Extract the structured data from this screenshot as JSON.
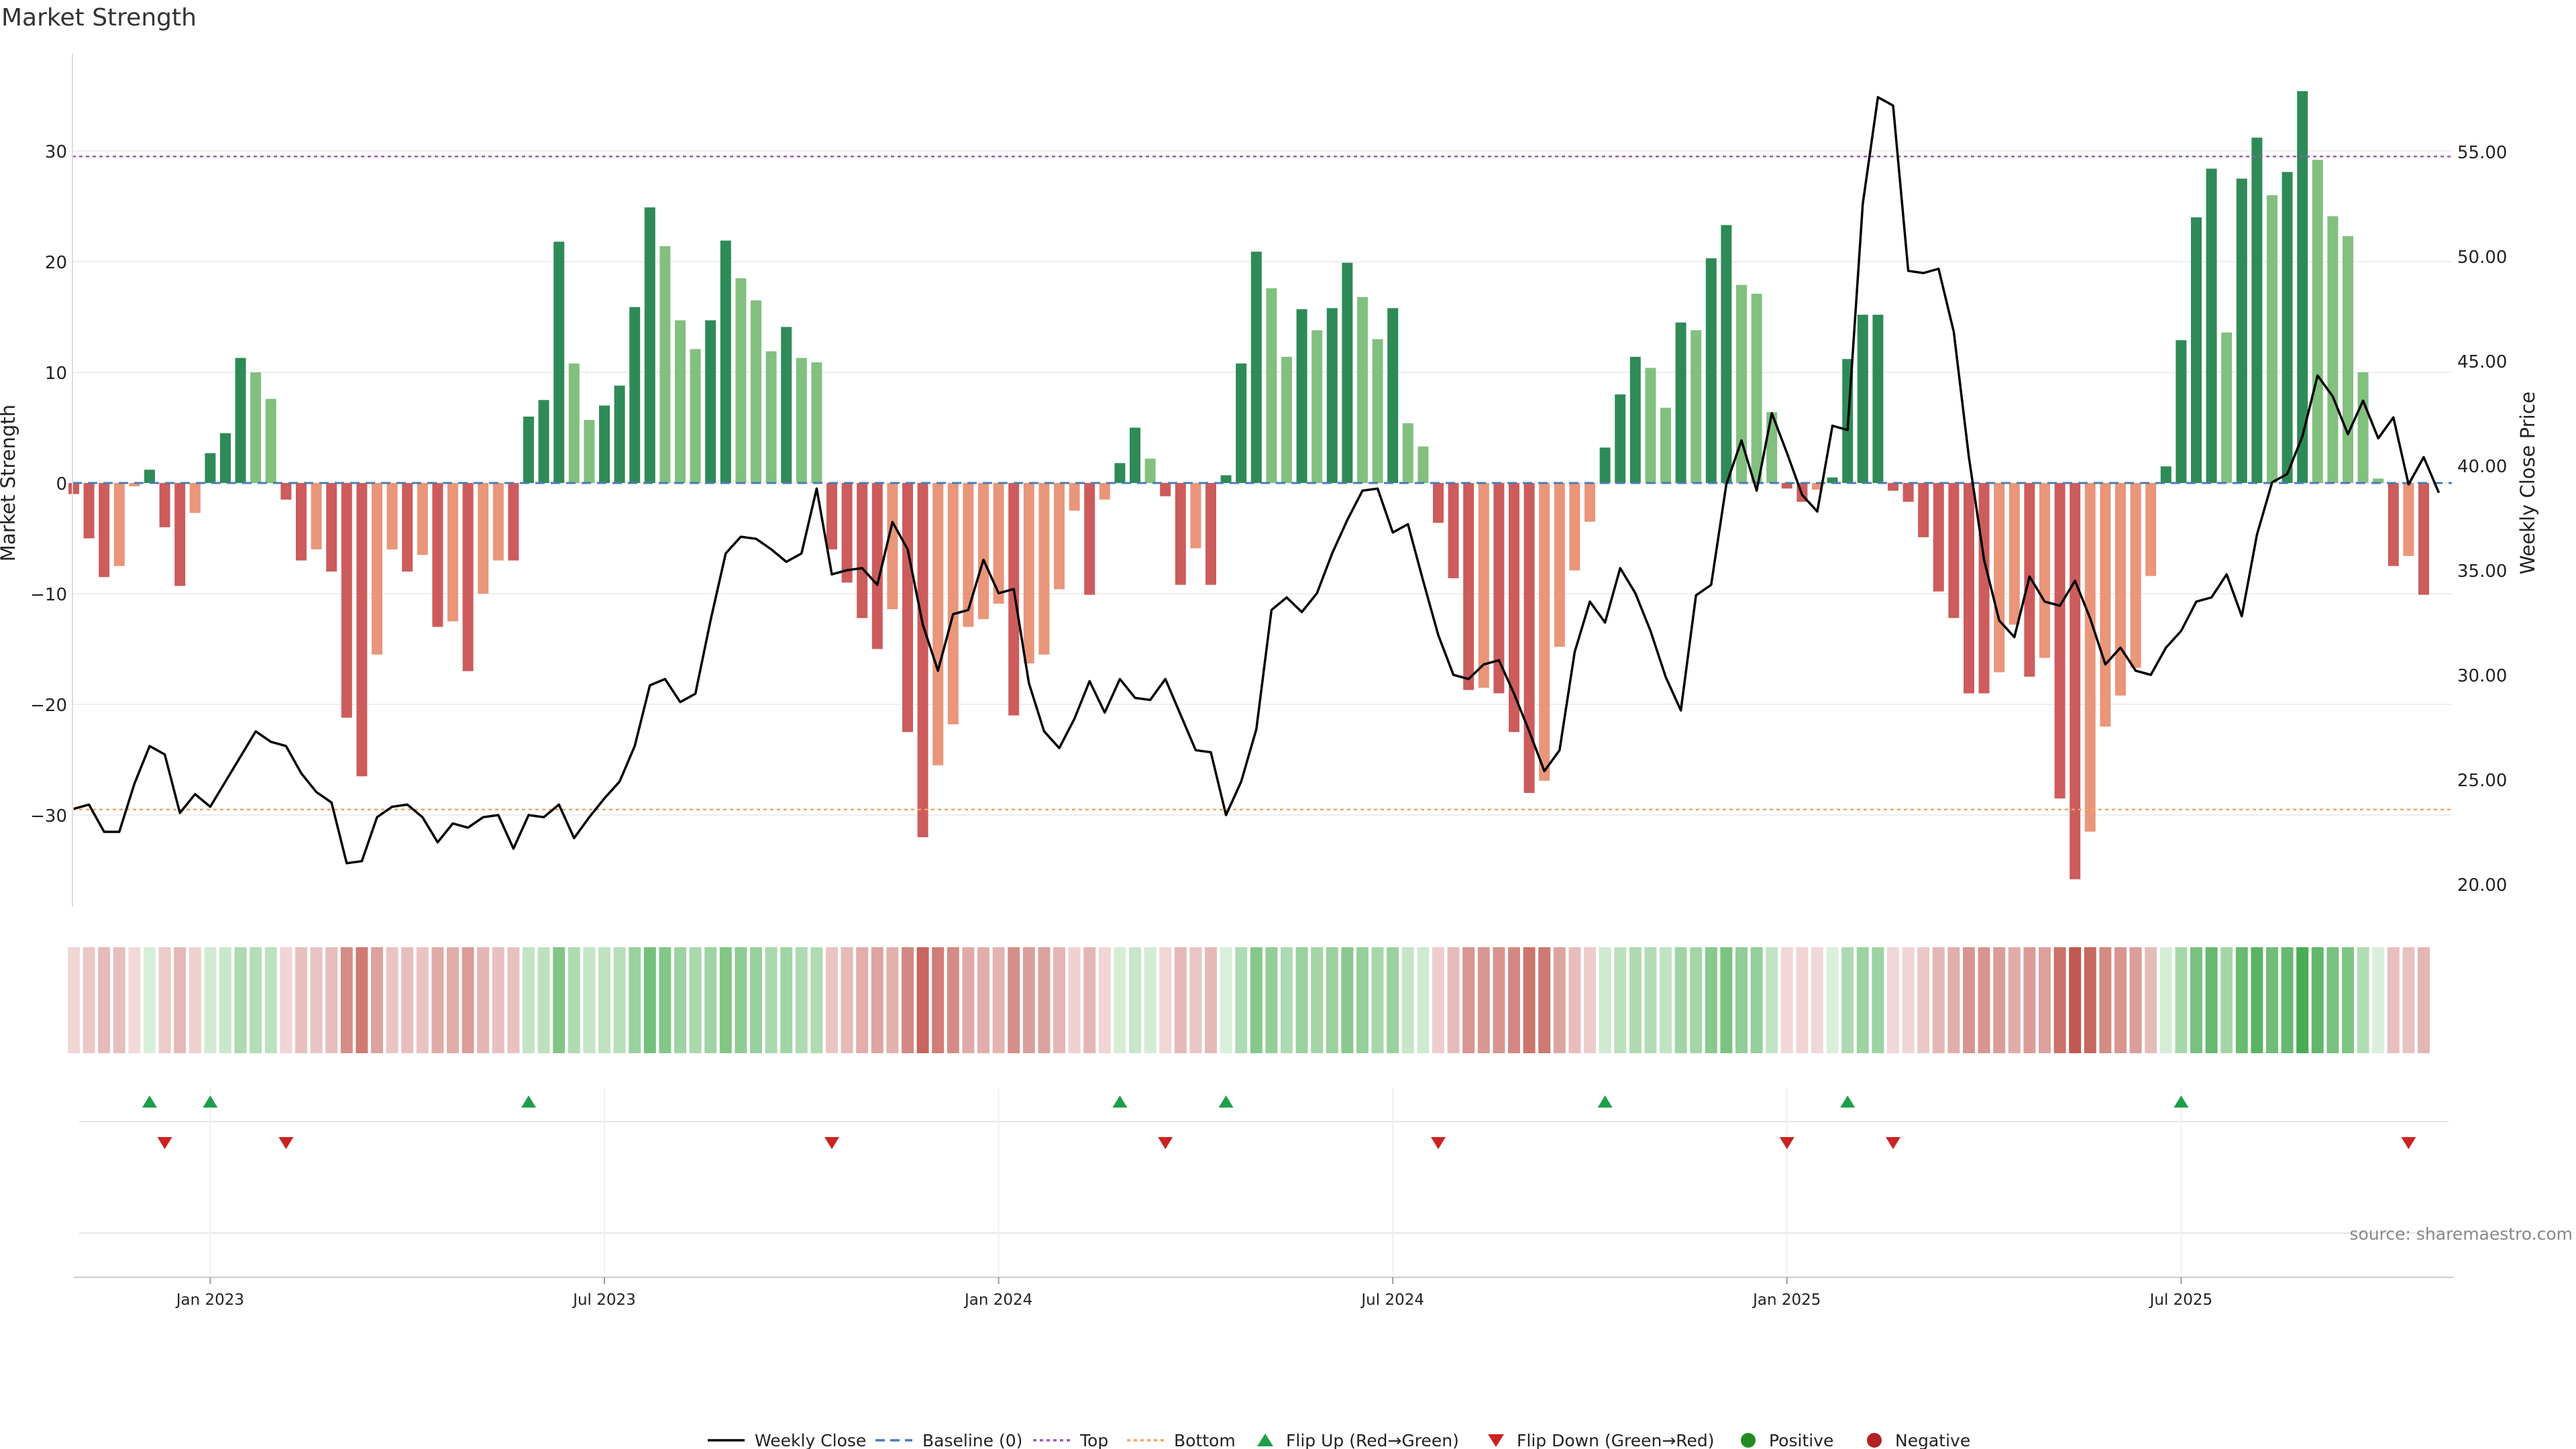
{
  "chart_data": {
    "type": "bar",
    "title": "Market Strength",
    "ylabel_left": "Market Strength",
    "ylabel_right": "Weekly Close Price",
    "source": "source: sharemaestro.com",
    "ylim_left": [
      -38,
      39
    ],
    "ylim_right": [
      19.0,
      59.8
    ],
    "yticks_left": [
      "−30",
      "−20",
      "−10",
      "0",
      "10",
      "20",
      "30"
    ],
    "yticks_right": [
      "20.00",
      "25.00",
      "30.00",
      "35.00",
      "40.00",
      "45.00",
      "50.00",
      "55.00"
    ],
    "x_ticks": [
      {
        "label": "Jan 2023",
        "index": 9
      },
      {
        "label": "Jul 2023",
        "index": 35
      },
      {
        "label": "Jan 2024",
        "index": 61
      },
      {
        "label": "Jul 2024",
        "index": 87
      },
      {
        "label": "Jan 2025",
        "index": 113
      },
      {
        "label": "Jul 2025",
        "index": 139
      }
    ],
    "top_line": 29.5,
    "bottom_line": -29.5,
    "strength": [
      -1,
      -5,
      -8.5,
      -7.5,
      -0.3,
      1.2,
      -4,
      -9.3,
      -2.7,
      2.7,
      4.5,
      11.3,
      10,
      7.6,
      -1.5,
      -7,
      -6,
      -8,
      -21.2,
      -26.5,
      -15.5,
      -6,
      -8,
      -6.5,
      -13,
      -12.5,
      -17,
      -10,
      -7,
      -7,
      6,
      7.5,
      21.8,
      10.8,
      5.7,
      7,
      8.8,
      15.9,
      24.9,
      21.4,
      14.7,
      12.1,
      14.7,
      21.9,
      18.5,
      16.5,
      11.9,
      14.1,
      11.3,
      10.9,
      -6,
      -9,
      -12.2,
      -15,
      -11.4,
      -22.5,
      -32,
      -25.5,
      -21.8,
      -13,
      -12.3,
      -10.9,
      -21,
      -16.3,
      -15.5,
      -9.6,
      -2.5,
      -10.1,
      -1.5,
      1.8,
      5,
      2.2,
      -1.2,
      -9.2,
      -5.9,
      -9.2,
      0.7,
      10.8,
      20.9,
      17.6,
      11.4,
      15.7,
      13.8,
      15.8,
      19.9,
      16.8,
      13,
      15.8,
      5.4,
      3.3,
      -3.6,
      -8.6,
      -18.7,
      -18.5,
      -19,
      -22.5,
      -28,
      -26.9,
      -14.8,
      -7.9,
      -3.5,
      3.2,
      8,
      11.4,
      10.4,
      6.8,
      14.5,
      13.8,
      20.3,
      23.3,
      17.9,
      17.1,
      6.4,
      -0.5,
      -1.7,
      -0.6,
      0.5,
      11.2,
      15.2,
      15.2,
      -0.7,
      -1.7,
      -4.9,
      -9.8,
      -12.2,
      -19,
      -19,
      -17.1,
      -12.8,
      -17.5,
      -15.8,
      -28.5,
      -35.8,
      -31.5,
      -22,
      -19.2,
      -16.7,
      -8.4,
      1.5,
      12.9,
      24,
      28.4,
      13.6,
      27.5,
      31.2,
      26,
      28.1,
      35.4,
      29.2,
      24.1,
      22.3,
      10,
      0.4,
      -7.5,
      -6.6,
      -10.1
    ],
    "weekly_close": [
      23.6,
      23.8,
      22.5,
      22.5,
      24.8,
      26.6,
      26.2,
      23.4,
      24.3,
      23.7,
      24.9,
      26.1,
      27.3,
      26.8,
      26.6,
      25.3,
      24.4,
      23.9,
      21.0,
      21.1,
      23.2,
      23.7,
      23.8,
      23.2,
      22.0,
      22.9,
      22.7,
      23.2,
      23.3,
      21.7,
      23.3,
      23.2,
      23.8,
      22.2,
      23.2,
      24.1,
      24.9,
      26.6,
      29.5,
      29.8,
      28.7,
      29.1,
      32.6,
      35.8,
      36.6,
      36.5,
      36.0,
      35.4,
      35.8,
      38.9,
      34.8,
      35.0,
      35.1,
      34.3,
      37.3,
      36.0,
      32.4,
      30.2,
      32.9,
      33.1,
      35.5,
      33.9,
      34.1,
      29.6,
      27.3,
      26.5,
      27.9,
      29.7,
      28.2,
      29.8,
      28.9,
      28.8,
      29.8,
      28.1,
      26.4,
      26.3,
      23.3,
      24.9,
      27.4,
      33.1,
      33.7,
      33.0,
      33.9,
      35.8,
      37.4,
      38.8,
      38.9,
      36.8,
      37.2,
      34.5,
      31.9,
      30.0,
      29.8,
      30.5,
      30.7,
      29.1,
      27.3,
      25.4,
      26.4,
      31.1,
      33.5,
      32.5,
      35.1,
      33.9,
      32.1,
      29.9,
      28.3,
      33.8,
      34.3,
      39.1,
      41.2,
      38.8,
      42.5,
      40.6,
      38.6,
      37.8,
      41.9,
      41.7,
      52.5,
      57.6,
      57.2,
      49.3,
      49.2,
      49.4,
      46.4,
      40.4,
      35.5,
      32.6,
      31.8,
      34.7,
      33.5,
      33.3,
      34.5,
      32.7,
      30.5,
      31.3,
      30.2,
      30.0,
      31.3,
      32.1,
      33.5,
      33.7,
      34.8,
      32.8,
      36.7,
      39.2,
      39.6,
      41.4,
      44.3,
      43.3,
      41.5,
      43.1,
      41.3,
      42.3,
      39.1,
      40.4,
      38.7
    ],
    "flip_up_indices": [
      5,
      9,
      30,
      69,
      76,
      101,
      117,
      139
    ],
    "flip_down_indices": [
      6,
      14,
      50,
      72,
      90,
      113,
      120,
      154
    ],
    "legend": [
      "Weekly Close",
      "Baseline (0)",
      "Top",
      "Bottom",
      "Flip Up (Red→Green)",
      "Flip Down (Green→Red)",
      "Positive",
      "Negative"
    ],
    "colors": {
      "pos_strong": "#2e8b57",
      "pos_light": "#82c07f",
      "neg_strong": "#cd5c5c",
      "neg_light": "#e9967a",
      "price_line": "#000000",
      "baseline": "#4a7bb7",
      "top": "#9b59b6",
      "bottom": "#f4a460",
      "flip_up": "#1e9e4a",
      "flip_down": "#cc2222",
      "positive": "#228b22",
      "negative": "#b22222"
    }
  }
}
